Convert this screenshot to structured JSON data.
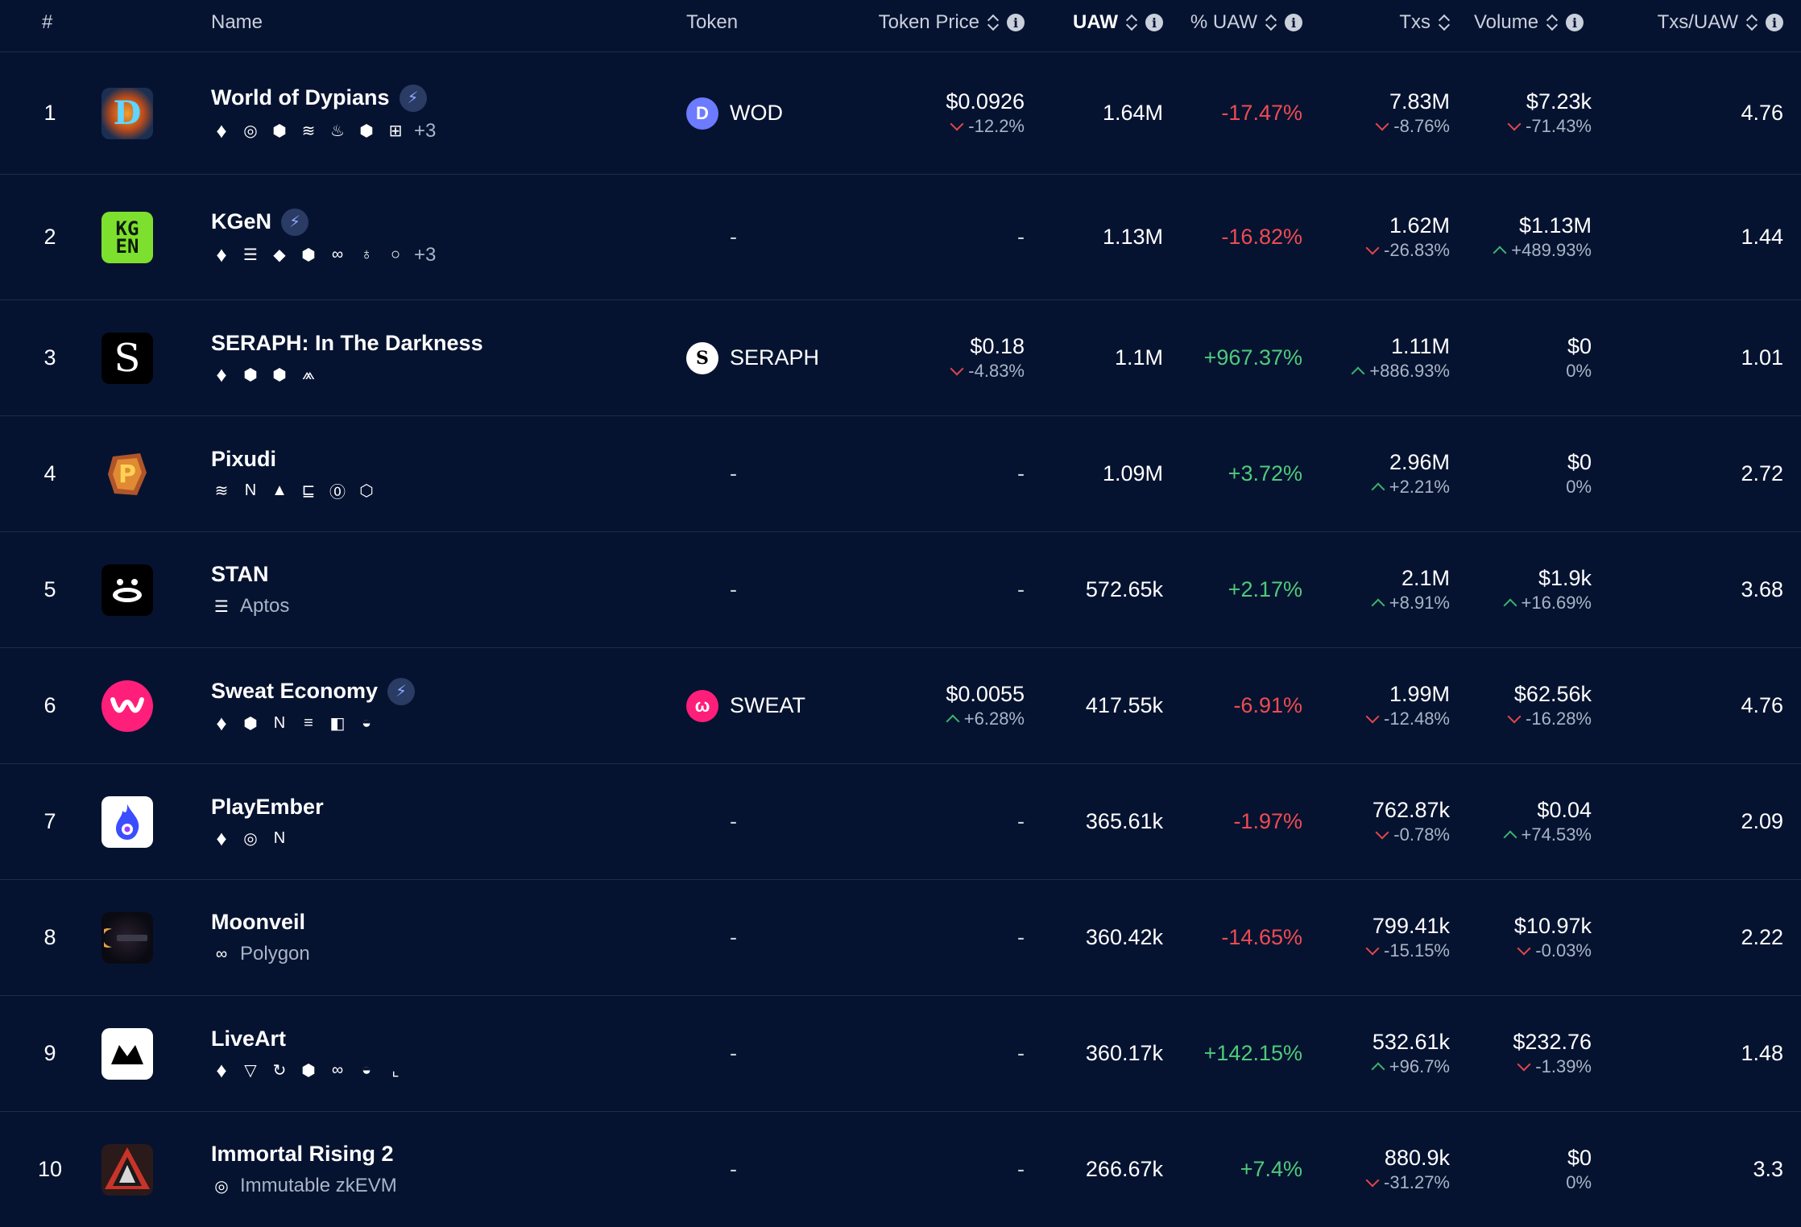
{
  "columns": {
    "rank": "#",
    "name": "Name",
    "token": "Token",
    "token_price": "Token Price",
    "uaw": "UAW",
    "pct_uaw": "% UAW",
    "txs": "Txs",
    "volume": "Volume",
    "txs_per_uaw": "Txs/UAW"
  },
  "rows": [
    {
      "rank": "1",
      "name": "World of Dypians",
      "chains_more": "+3",
      "chain_label": "",
      "token": "WOD",
      "price": "$0.0926",
      "price_change": "-12.2%",
      "uaw": "1.64M",
      "pct_uaw": "-17.47%",
      "txs": "7.83M",
      "txs_change": "-8.76%",
      "volume": "$7.23k",
      "volume_change": "-71.43%",
      "ratio": "4.76"
    },
    {
      "rank": "2",
      "name": "KGeN",
      "chains_more": "+3",
      "chain_label": "",
      "token": "-",
      "price": "-",
      "price_change": "",
      "uaw": "1.13M",
      "pct_uaw": "-16.82%",
      "txs": "1.62M",
      "txs_change": "-26.83%",
      "volume": "$1.13M",
      "volume_change": "+489.93%",
      "ratio": "1.44"
    },
    {
      "rank": "3",
      "name": "SERAPH: In The Darkness",
      "chains_more": "",
      "chain_label": "",
      "token": "SERAPH",
      "price": "$0.18",
      "price_change": "-4.83%",
      "uaw": "1.1M",
      "pct_uaw": "+967.37%",
      "txs": "1.11M",
      "txs_change": "+886.93%",
      "volume": "$0",
      "volume_change": "0%",
      "ratio": "1.01"
    },
    {
      "rank": "4",
      "name": "Pixudi",
      "chains_more": "",
      "chain_label": "",
      "token": "-",
      "price": "-",
      "price_change": "",
      "uaw": "1.09M",
      "pct_uaw": "+3.72%",
      "txs": "2.96M",
      "txs_change": "+2.21%",
      "volume": "$0",
      "volume_change": "0%",
      "ratio": "2.72"
    },
    {
      "rank": "5",
      "name": "STAN",
      "chains_more": "",
      "chain_label": "Aptos",
      "token": "-",
      "price": "-",
      "price_change": "",
      "uaw": "572.65k",
      "pct_uaw": "+2.17%",
      "txs": "2.1M",
      "txs_change": "+8.91%",
      "volume": "$1.9k",
      "volume_change": "+16.69%",
      "ratio": "3.68"
    },
    {
      "rank": "6",
      "name": "Sweat Economy",
      "chains_more": "",
      "chain_label": "",
      "token": "SWEAT",
      "price": "$0.0055",
      "price_change": "+6.28%",
      "uaw": "417.55k",
      "pct_uaw": "-6.91%",
      "txs": "1.99M",
      "txs_change": "-12.48%",
      "volume": "$62.56k",
      "volume_change": "-16.28%",
      "ratio": "4.76"
    },
    {
      "rank": "7",
      "name": "PlayEmber",
      "chains_more": "",
      "chain_label": "",
      "token": "-",
      "price": "-",
      "price_change": "",
      "uaw": "365.61k",
      "pct_uaw": "-1.97%",
      "txs": "762.87k",
      "txs_change": "-0.78%",
      "volume": "$0.04",
      "volume_change": "+74.53%",
      "ratio": "2.09"
    },
    {
      "rank": "8",
      "name": "Moonveil",
      "chains_more": "",
      "chain_label": "Polygon",
      "token": "-",
      "price": "-",
      "price_change": "",
      "uaw": "360.42k",
      "pct_uaw": "-14.65%",
      "txs": "799.41k",
      "txs_change": "-15.15%",
      "volume": "$10.97k",
      "volume_change": "-0.03%",
      "ratio": "2.22"
    },
    {
      "rank": "9",
      "name": "LiveArt",
      "chains_more": "",
      "chain_label": "",
      "token": "-",
      "price": "-",
      "price_change": "",
      "uaw": "360.17k",
      "pct_uaw": "+142.15%",
      "txs": "532.61k",
      "txs_change": "+96.7%",
      "volume": "$232.76",
      "volume_change": "-1.39%",
      "ratio": "1.48"
    },
    {
      "rank": "10",
      "name": "Immortal Rising 2",
      "chains_more": "",
      "chain_label": "Immutable zkEVM",
      "token": "-",
      "price": "-",
      "price_change": "",
      "uaw": "266.67k",
      "pct_uaw": "+7.4%",
      "txs": "880.9k",
      "txs_change": "-31.27%",
      "volume": "$0",
      "volume_change": "0%",
      "ratio": "3.3"
    }
  ],
  "logos": {
    "kgen": "KG\nEN",
    "seraph": "S"
  },
  "colors": {
    "background": "#061330",
    "positive": "#4fca7c",
    "negative": "#ef4b52",
    "muted": "#a9b4c6",
    "divider": "#1d2d4a"
  },
  "icons": [
    "ethereum-icon",
    "bnb-icon",
    "aptos-icon",
    "near-icon",
    "polygon-icon",
    "immutable-icon",
    "bolt-icon",
    "sort-icon",
    "info-icon"
  ]
}
